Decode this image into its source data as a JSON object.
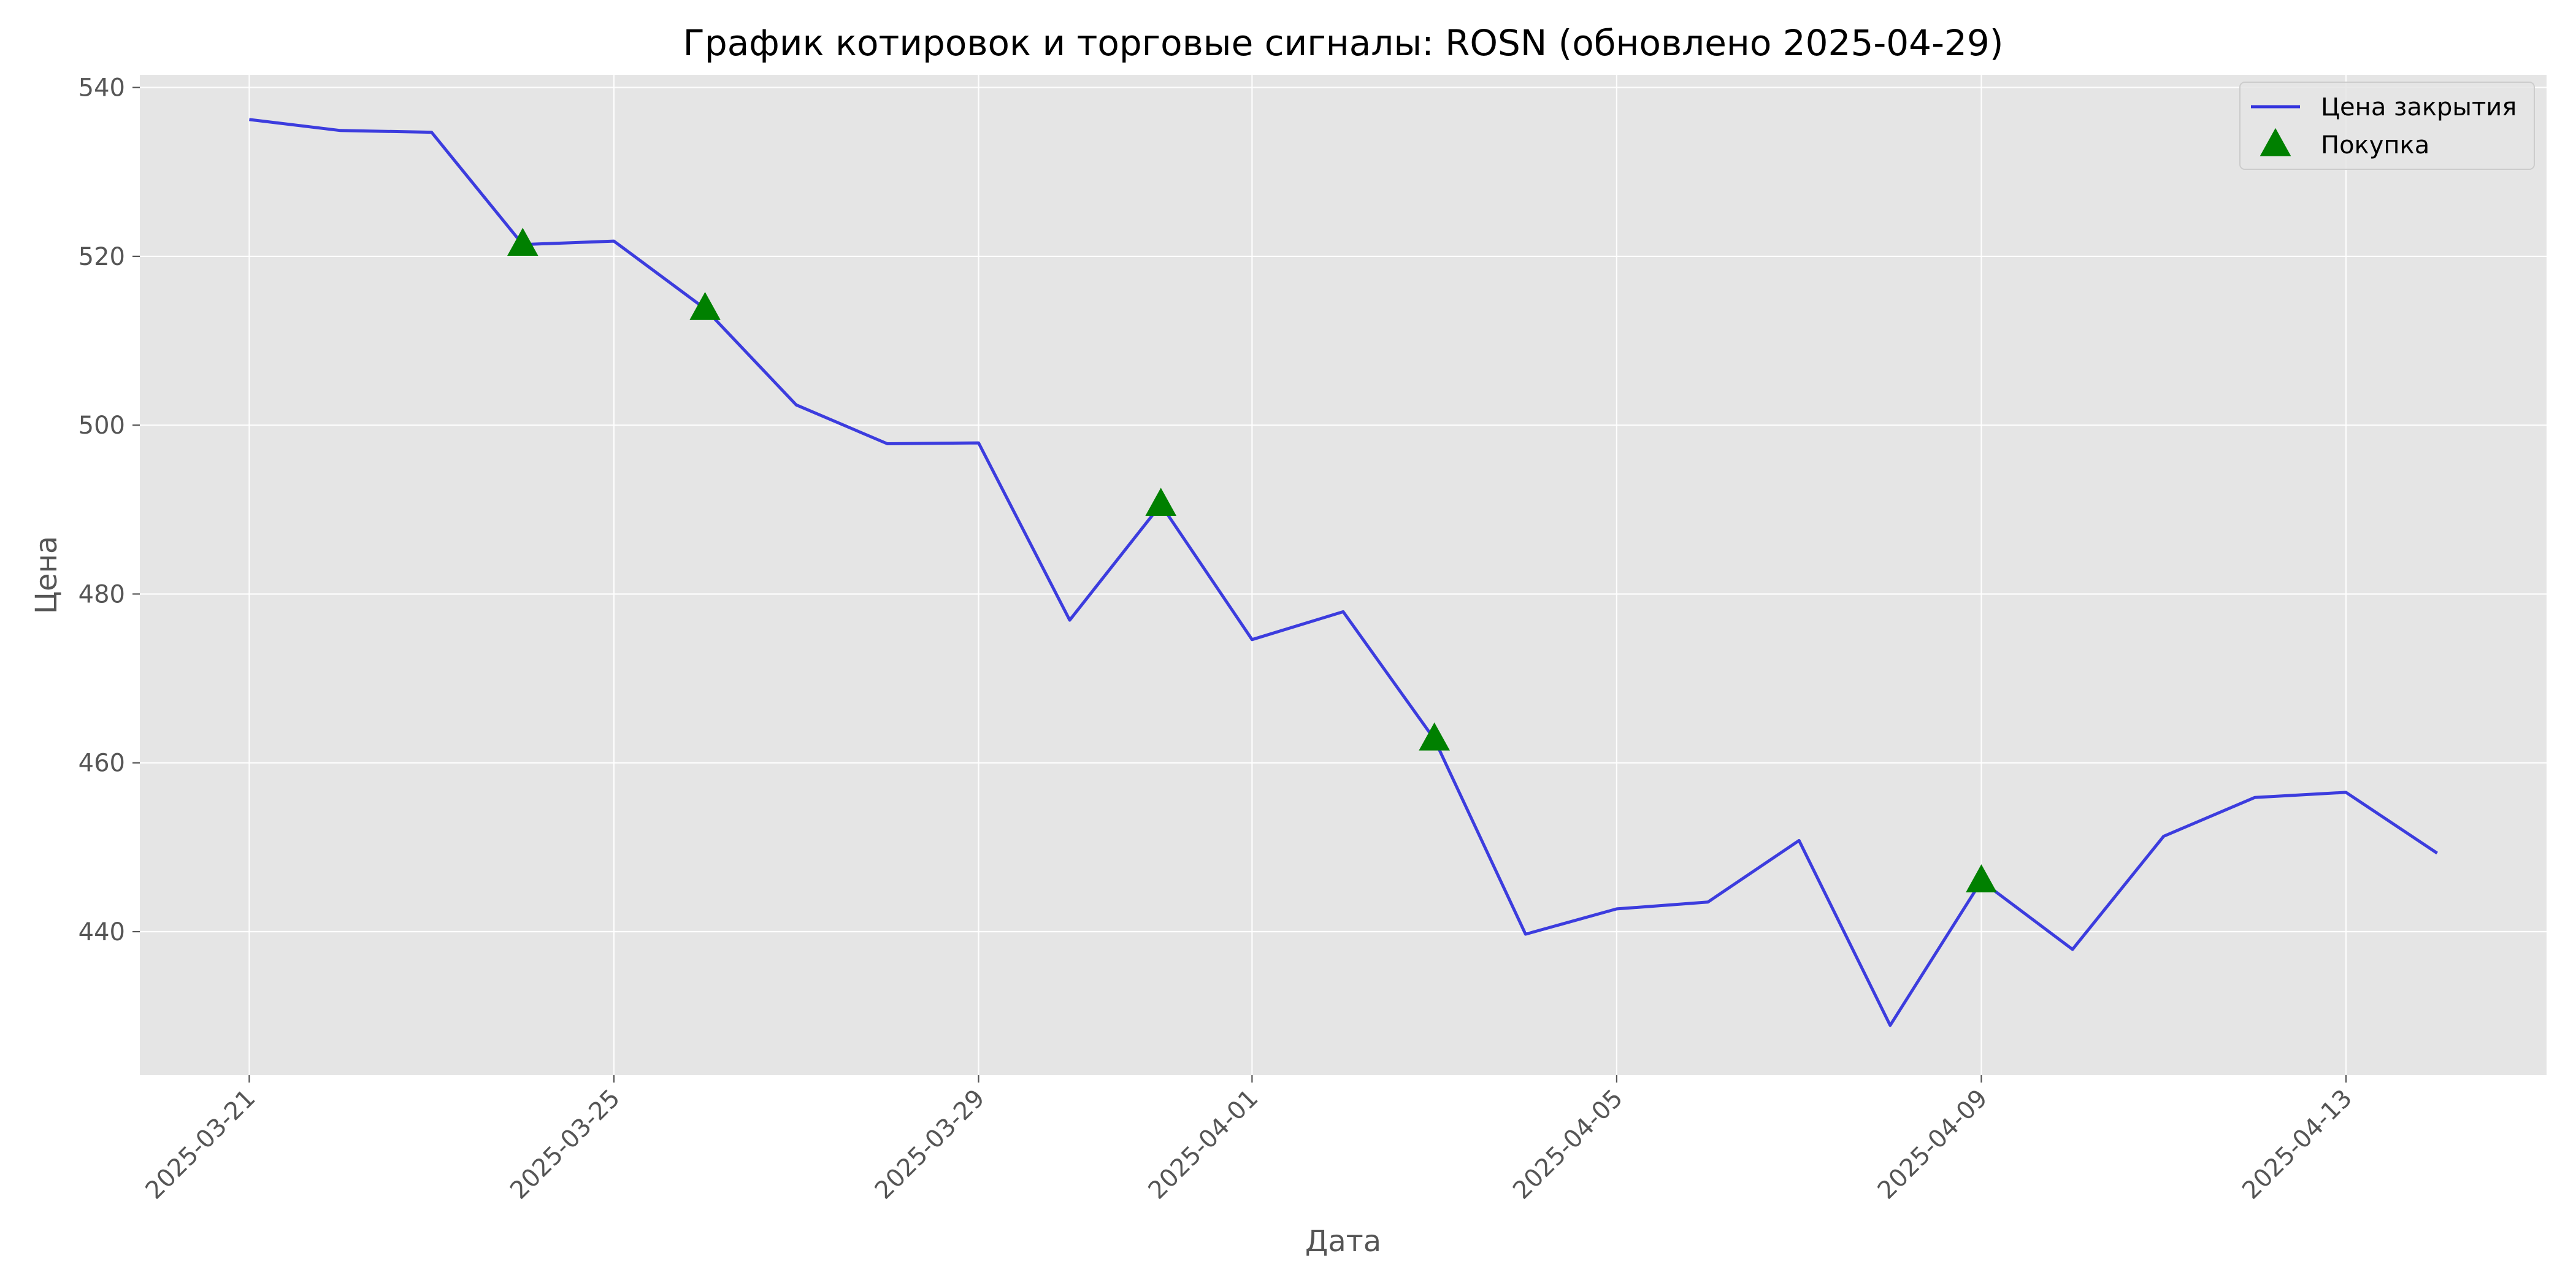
{
  "chart_data": {
    "type": "line",
    "title": "График котировок и торговые сигналы: ROSN (обновлено 2025-04-29)",
    "xlabel": "Дата",
    "ylabel": "Цена",
    "x_type": "date",
    "xlim": [
      "2025-03-19 19:12",
      "2025-04-15 04:48"
    ],
    "ylim": [
      423.0,
      541.5
    ],
    "x_ticks": [
      "2025-03-21",
      "2025-03-25",
      "2025-03-29",
      "2025-04-01",
      "2025-04-05",
      "2025-04-09",
      "2025-04-13"
    ],
    "y_ticks": [
      440,
      460,
      480,
      500,
      520,
      540
    ],
    "grid": true,
    "legend_position": "top-right",
    "colors": {
      "plot_background": "#e5e5e5",
      "grid": "#ffffff",
      "line": "#3333dd",
      "buy_marker": "#008000",
      "legend_background": "#e5e5e5",
      "legend_border": "#cccccc"
    },
    "series": [
      {
        "name": "Цена закрытия",
        "kind": "line",
        "x": [
          "2025-03-21",
          "2025-03-22",
          "2025-03-23",
          "2025-03-24",
          "2025-03-25",
          "2025-03-26",
          "2025-03-27",
          "2025-03-28",
          "2025-03-29",
          "2025-03-30",
          "2025-03-31",
          "2025-04-01",
          "2025-04-02",
          "2025-04-03",
          "2025-04-04",
          "2025-04-05",
          "2025-04-06",
          "2025-04-07",
          "2025-04-08",
          "2025-04-09",
          "2025-04-10",
          "2025-04-11",
          "2025-04-12",
          "2025-04-13",
          "2025-04-14"
        ],
        "values": [
          536.2,
          534.9,
          534.7,
          521.4,
          521.8,
          513.8,
          502.4,
          497.8,
          497.9,
          476.9,
          490.6,
          474.6,
          477.9,
          462.8,
          439.7,
          442.7,
          443.5,
          450.8,
          428.9,
          446.0,
          437.9,
          451.3,
          455.9,
          456.5,
          449.3
        ]
      },
      {
        "name": "Покупка",
        "kind": "marker",
        "marker": "triangle-up",
        "x": [
          "2025-03-24",
          "2025-03-26",
          "2025-03-31",
          "2025-04-03",
          "2025-04-09"
        ],
        "values": [
          521.4,
          513.8,
          490.6,
          462.8,
          446.0
        ]
      }
    ]
  }
}
